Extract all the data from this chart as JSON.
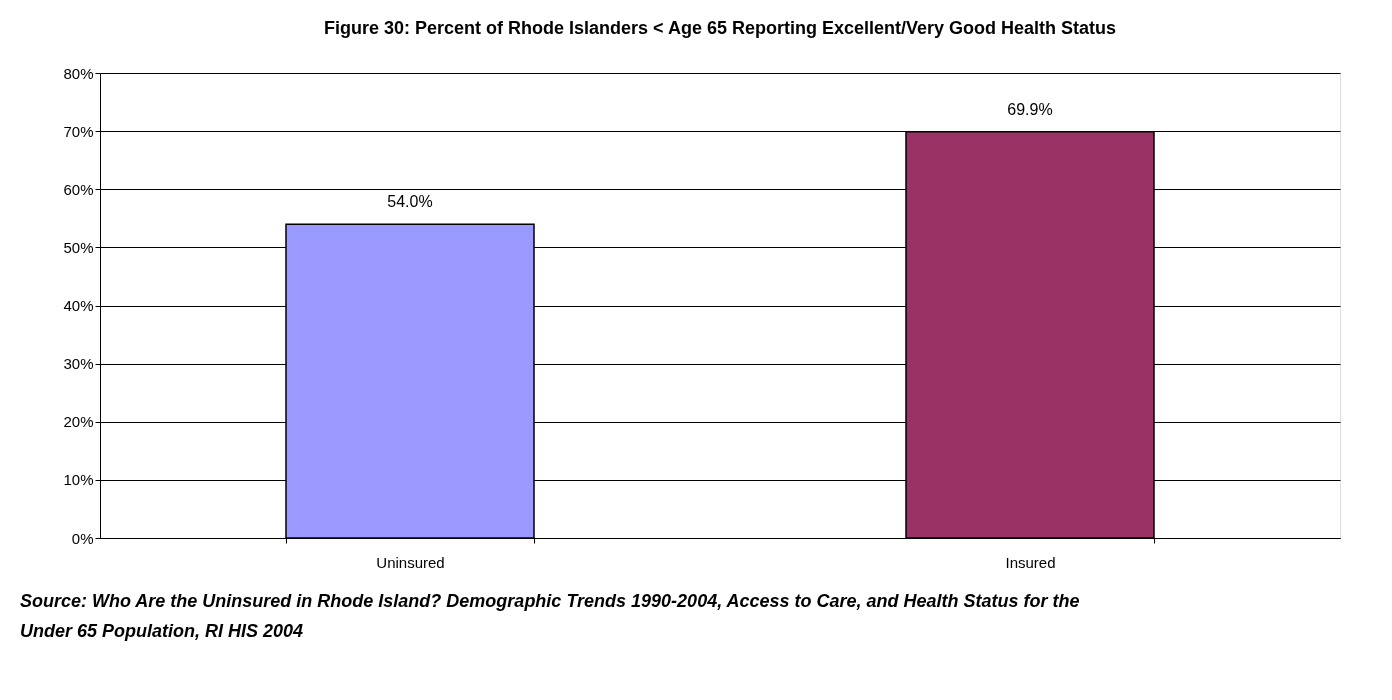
{
  "chart_data": {
    "type": "bar",
    "title": "Figure 30: Percent of Rhode Islanders < Age 65 Reporting Excellent/Very Good Health Status",
    "categories": [
      "Uninsured",
      "Insured"
    ],
    "values": [
      54.0,
      69.9
    ],
    "colors": [
      "#9999ff",
      "#993366"
    ],
    "value_labels": [
      "54.0%",
      "69.9%"
    ],
    "ylim": [
      0,
      80
    ],
    "yticks": [
      {
        "value": 0,
        "label": "0%"
      },
      {
        "value": 10,
        "label": "10%"
      },
      {
        "value": 20,
        "label": "20%"
      },
      {
        "value": 30,
        "label": "30%"
      },
      {
        "value": 40,
        "label": "40%"
      },
      {
        "value": 50,
        "label": "50%"
      },
      {
        "value": 60,
        "label": "60%"
      },
      {
        "value": 70,
        "label": "70%"
      },
      {
        "value": 80,
        "label": "80%"
      }
    ],
    "grid": "y",
    "annotations": [
      "Source: Who Are the Uninsured in Rhode Island? Demographic Trends 1990-2004, Access to Care, and Health Status for the Under 65 Population, RI HIS 2004"
    ]
  }
}
